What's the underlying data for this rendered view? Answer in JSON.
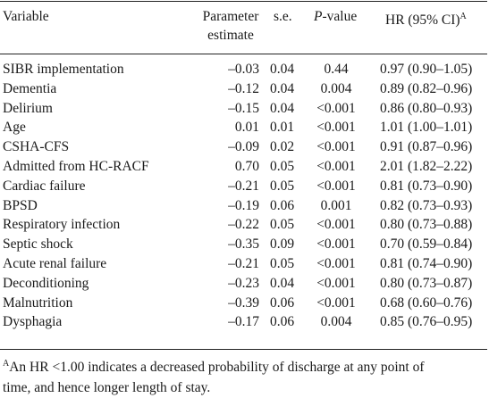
{
  "header": {
    "variable": "Variable",
    "parameter_estimate_line1": "Parameter",
    "parameter_estimate_line2": "estimate",
    "se": "s.e.",
    "pvalue_p": "P",
    "pvalue_rest": "-value",
    "hr": "HR (95% CI)",
    "hr_sup": "A"
  },
  "rows": [
    {
      "variable": "SIBR implementation",
      "estimate": "–0.03",
      "se": "0.04",
      "p": "0.44",
      "hr": "0.97 (0.90–1.05)"
    },
    {
      "variable": "Dementia",
      "estimate": "–0.12",
      "se": "0.04",
      "p": "0.004",
      "hr": "0.89 (0.82–0.96)"
    },
    {
      "variable": "Delirium",
      "estimate": "–0.15",
      "se": "0.04",
      "p": "<0.001",
      "hr": "0.86 (0.80–0.93)"
    },
    {
      "variable": "Age",
      "estimate": "0.01",
      "se": "0.01",
      "p": "<0.001",
      "hr": "1.01 (1.00–1.01)"
    },
    {
      "variable": "CSHA-CFS",
      "estimate": "–0.09",
      "se": "0.02",
      "p": "<0.001",
      "hr": "0.91 (0.87–0.96)"
    },
    {
      "variable": "Admitted from HC-RACF",
      "estimate": "0.70",
      "se": "0.05",
      "p": "<0.001",
      "hr": "2.01 (1.82–2.22)"
    },
    {
      "variable": "Cardiac failure",
      "estimate": "–0.21",
      "se": "0.05",
      "p": "<0.001",
      "hr": "0.81 (0.73–0.90)"
    },
    {
      "variable": "BPSD",
      "estimate": "–0.19",
      "se": "0.06",
      "p": "0.001",
      "hr": "0.82 (0.73–0.93)"
    },
    {
      "variable": "Respiratory infection",
      "estimate": "–0.22",
      "se": "0.05",
      "p": "<0.001",
      "hr": "0.80 (0.73–0.88)"
    },
    {
      "variable": "Septic shock",
      "estimate": "–0.35",
      "se": "0.09",
      "p": "<0.001",
      "hr": "0.70 (0.59–0.84)"
    },
    {
      "variable": "Acute renal failure",
      "estimate": "–0.21",
      "se": "0.05",
      "p": "<0.001",
      "hr": "0.81 (0.74–0.90)"
    },
    {
      "variable": "Deconditioning",
      "estimate": "–0.23",
      "se": "0.04",
      "p": "<0.001",
      "hr": "0.80 (0.73–0.87)"
    },
    {
      "variable": "Malnutrition",
      "estimate": "–0.39",
      "se": "0.06",
      "p": "<0.001",
      "hr": "0.68 (0.60–0.76)"
    },
    {
      "variable": "Dysphagia",
      "estimate": "–0.17",
      "se": "0.06",
      "p": "0.004",
      "hr": "0.85 (0.76–0.95)"
    }
  ],
  "footnote": {
    "marker": "A",
    "line1": "An HR <1.00 indicates a decreased probability of discharge at any point of",
    "line2": "time, and hence longer length of stay."
  }
}
